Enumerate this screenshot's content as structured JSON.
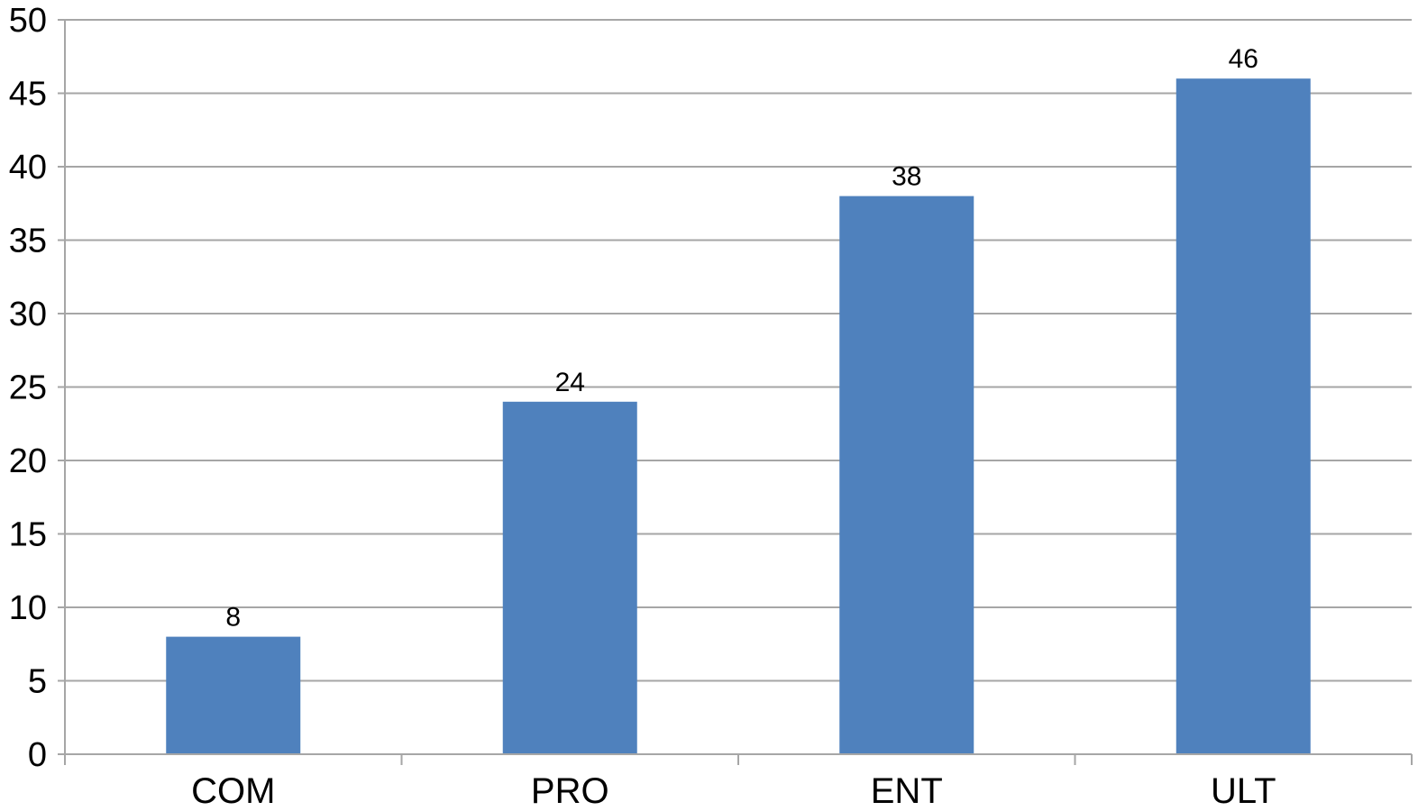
{
  "chart_data": {
    "type": "bar",
    "categories": [
      "COM",
      "PRO",
      "ENT",
      "ULT"
    ],
    "series": [
      {
        "values": [
          8,
          24,
          38,
          46
        ],
        "color": "#4f81bd"
      }
    ],
    "data_labels": [
      "8",
      "24",
      "38",
      "46"
    ],
    "y_ticks": [
      "0",
      "5",
      "10",
      "15",
      "20",
      "25",
      "30",
      "35",
      "40",
      "45",
      "50"
    ],
    "ylim": [
      0,
      50
    ],
    "y_step": 5,
    "title": "",
    "xlabel": "",
    "ylabel": "",
    "grid": true,
    "legend": "none",
    "gridline_color": "#a6a6a6",
    "axis_color": "#a6a6a6"
  }
}
